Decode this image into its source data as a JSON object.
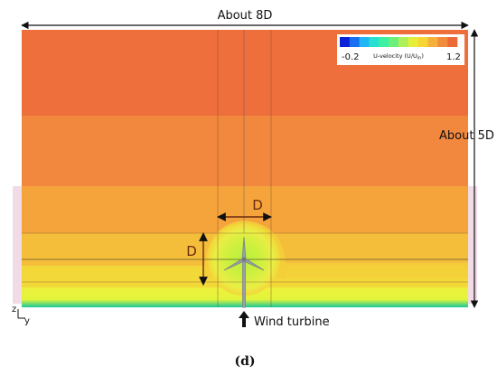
{
  "labels": {
    "width": "About 8D",
    "height": "About 5D",
    "rotor_d_horizontal": "D",
    "rotor_d_vertical": "D",
    "turbine": "Wind turbine",
    "axis_z": "z",
    "axis_y": "y",
    "panel": "(d)"
  },
  "legend": {
    "title_main": "U-velocity (U/U",
    "title_sub": "in",
    "title_end": ")",
    "min": "-0.2",
    "max": "1.2",
    "colors": [
      "#0b22d6",
      "#1a6ff0",
      "#20b6f5",
      "#27e0d2",
      "#3ef0a2",
      "#6cf07a",
      "#aef05a",
      "#e6ee3a",
      "#f7d634",
      "#f5b13a",
      "#f18c3c",
      "#ec6a36"
    ]
  },
  "colors": {
    "top_band": "#ee6f3c",
    "upper_band": "#f2883d",
    "middle_band": "#f5a83c",
    "lower_band": "#f4c23a",
    "near_ground": "#f1e93e",
    "ground": "#e8f53a",
    "ground_edge": "#1fd0a0",
    "wake_core": "#c8f040",
    "wake_outer": "#e9ee48"
  }
}
